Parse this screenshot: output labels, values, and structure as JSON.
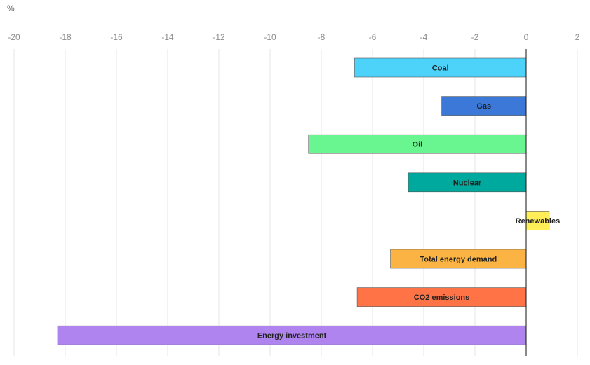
{
  "chart_data": {
    "type": "bar",
    "orientation": "horizontal",
    "unit_label": "%",
    "xlim": [
      -20,
      2
    ],
    "x_ticks": [
      -20,
      -18,
      -16,
      -14,
      -12,
      -10,
      -8,
      -6,
      -4,
      -2,
      0,
      2
    ],
    "x_tick_labels": [
      "-20",
      "-18",
      "-16",
      "-14",
      "-12",
      "-10",
      "-8",
      "-6",
      "-4",
      "-2",
      "0",
      "2"
    ],
    "grid": true,
    "categories": [
      "Coal",
      "Gas",
      "Oil",
      "Nuclear",
      "Renewables",
      "Total energy demand",
      "CO2 emissions",
      "Energy investment"
    ],
    "values": [
      -6.7,
      -3.3,
      -8.5,
      -4.6,
      0.9,
      -5.3,
      -6.6,
      -18.3
    ],
    "colors": [
      "#4dd2fa",
      "#3b78d8",
      "#69f590",
      "#00a99d",
      "#ffee58",
      "#fbb443",
      "#ff7347",
      "#b084ee"
    ]
  }
}
